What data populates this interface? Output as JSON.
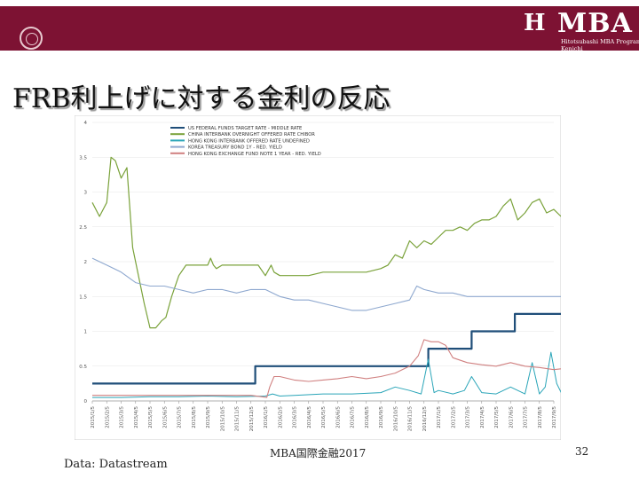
{
  "slide": {
    "title": "FRB利上げに対する金利の反応",
    "footer_center": "MBA国際金融2017",
    "page_number": "32",
    "source": "Data: Datastream"
  },
  "header": {
    "logo_mark": "H",
    "logo_text": "MBA",
    "logo_sub1": "Hitotsubashi MBA Program",
    "logo_sub2": "Kenichi"
  },
  "colors": {
    "banner": "#7d1233",
    "us_fed": "#1f4e79",
    "chibor": "#7aa23a",
    "hibor": "#2aa5b8",
    "korea": "#8ea8cf",
    "hk_efn": "#d08080"
  },
  "chart_data": {
    "type": "line",
    "ylim": [
      0,
      4
    ],
    "yticks": [
      "0",
      "0.5",
      "1",
      "1.5",
      "2",
      "2.5",
      "3",
      "3.5",
      "4"
    ],
    "xticks": [
      "2015/1/5",
      "2015/2/5",
      "2015/3/5",
      "2015/4/5",
      "2015/5/5",
      "2015/6/5",
      "2015/7/5",
      "2015/8/5",
      "2015/9/5",
      "2015/10/5",
      "2015/11/5",
      "2015/12/5",
      "2016/1/5",
      "2016/2/5",
      "2016/3/5",
      "2016/4/5",
      "2016/5/5",
      "2016/6/5",
      "2016/7/5",
      "2016/8/5",
      "2016/9/5",
      "2016/10/5",
      "2016/11/5",
      "2016/12/5",
      "2017/1/5",
      "2017/2/5",
      "2017/3/5",
      "2017/4/5",
      "2017/5/5",
      "2017/6/5",
      "2017/7/5",
      "2017/8/5",
      "2017/9/5"
    ],
    "legend_position": "top",
    "series": [
      {
        "name": "US FEDERAL FUNDS TARGET RATE - MIDDLE RATE",
        "color": "#1f4e79",
        "width": 2.2,
        "x": [
          0,
          11.3,
          11.3,
          23.3,
          23.3,
          26.3,
          26.3,
          29.3,
          29.3,
          32.9
        ],
        "y": [
          0.25,
          0.25,
          0.5,
          0.5,
          0.75,
          0.75,
          1.0,
          1.0,
          1.25,
          1.25
        ]
      },
      {
        "name": "CHINA INTERBANK OVERNIGHT OFFERED RATE CHIBOR",
        "color": "#7aa23a",
        "width": 1.2,
        "x": [
          0,
          0.5,
          1.0,
          1.3,
          1.6,
          2.0,
          2.4,
          2.8,
          3.2,
          3.6,
          4.0,
          4.4,
          4.8,
          5.1,
          5.5,
          6.0,
          6.5,
          7.0,
          7.5,
          8.0,
          8.2,
          8.4,
          8.6,
          9.0,
          9.5,
          10.0,
          10.5,
          11.0,
          11.5,
          12.0,
          12.4,
          12.6,
          13.0,
          13.5,
          14.0,
          15.0,
          16.0,
          17.0,
          18.0,
          19.0,
          20.0,
          20.5,
          21.0,
          21.5,
          22.0,
          22.5,
          23.0,
          23.5,
          24.0,
          24.5,
          25.0,
          25.5,
          26.0,
          26.5,
          27.0,
          27.5,
          28.0,
          28.5,
          29.0,
          29.5,
          30.0,
          30.5,
          31.0,
          31.5,
          32.0,
          32.5,
          32.9
        ],
        "y": [
          2.85,
          2.65,
          2.85,
          3.5,
          3.45,
          3.2,
          3.35,
          2.2,
          1.8,
          1.4,
          1.05,
          1.05,
          1.15,
          1.2,
          1.5,
          1.8,
          1.95,
          1.95,
          1.95,
          1.95,
          2.05,
          1.95,
          1.9,
          1.95,
          1.95,
          1.95,
          1.95,
          1.95,
          1.95,
          1.8,
          1.95,
          1.85,
          1.8,
          1.8,
          1.8,
          1.8,
          1.85,
          1.85,
          1.85,
          1.85,
          1.9,
          1.95,
          2.1,
          2.05,
          2.3,
          2.2,
          2.3,
          2.25,
          2.35,
          2.45,
          2.45,
          2.5,
          2.45,
          2.55,
          2.6,
          2.6,
          2.65,
          2.8,
          2.9,
          2.6,
          2.7,
          2.85,
          2.9,
          2.7,
          2.75,
          2.65,
          2.85
        ]
      },
      {
        "name": "HONG KONG INTERBANK OFFERED RATE UNDEFINED",
        "color": "#2aa5b8",
        "width": 1.0,
        "x": [
          0,
          2,
          4,
          6,
          8,
          10,
          12,
          12.5,
          13,
          14,
          16,
          18,
          20,
          21,
          22,
          22.8,
          23.3,
          23.7,
          24,
          25,
          25.8,
          26.3,
          27,
          28,
          29,
          30,
          30.5,
          31,
          31.4,
          31.8,
          32.2,
          32.6,
          32.9
        ],
        "y": [
          0.05,
          0.05,
          0.06,
          0.06,
          0.07,
          0.06,
          0.07,
          0.1,
          0.07,
          0.08,
          0.1,
          0.1,
          0.12,
          0.2,
          0.15,
          0.1,
          0.6,
          0.12,
          0.15,
          0.1,
          0.15,
          0.35,
          0.12,
          0.1,
          0.2,
          0.1,
          0.55,
          0.1,
          0.2,
          0.7,
          0.25,
          0.08,
          0.2
        ]
      },
      {
        "name": "KOREA TREASURY BOND 1Y - RED. YIELD",
        "color": "#8ea8cf",
        "width": 1.1,
        "x": [
          0,
          1,
          2,
          3,
          4,
          5,
          6,
          7,
          8,
          9,
          10,
          11,
          12,
          13,
          14,
          15,
          16,
          17,
          18,
          19,
          20,
          21,
          22,
          22.5,
          23,
          24,
          25,
          26,
          27,
          28,
          29,
          30,
          31,
          32,
          32.9
        ],
        "y": [
          2.05,
          1.95,
          1.85,
          1.7,
          1.65,
          1.65,
          1.6,
          1.55,
          1.6,
          1.6,
          1.55,
          1.6,
          1.6,
          1.5,
          1.45,
          1.45,
          1.4,
          1.35,
          1.3,
          1.3,
          1.35,
          1.4,
          1.45,
          1.65,
          1.6,
          1.55,
          1.55,
          1.5,
          1.5,
          1.5,
          1.5,
          1.5,
          1.5,
          1.5,
          1.5
        ]
      },
      {
        "name": "HONG KONG EXCHANGE FUND NOTE 1 YEAR - RED. YIELD",
        "color": "#d08080",
        "width": 1.1,
        "x": [
          0,
          2,
          4,
          6,
          8,
          10,
          11,
          12.1,
          12.3,
          12.6,
          13,
          14,
          15,
          16,
          17,
          18,
          19,
          20,
          21,
          22,
          22.6,
          23,
          23.5,
          24,
          24.5,
          25,
          26,
          27,
          28,
          29,
          30,
          31,
          32,
          32.9
        ],
        "y": [
          0.08,
          0.08,
          0.08,
          0.08,
          0.08,
          0.08,
          0.08,
          0.05,
          0.2,
          0.35,
          0.35,
          0.3,
          0.28,
          0.3,
          0.32,
          0.35,
          0.32,
          0.35,
          0.4,
          0.5,
          0.65,
          0.88,
          0.85,
          0.85,
          0.8,
          0.62,
          0.55,
          0.52,
          0.5,
          0.55,
          0.5,
          0.48,
          0.45,
          0.47
        ]
      }
    ]
  }
}
